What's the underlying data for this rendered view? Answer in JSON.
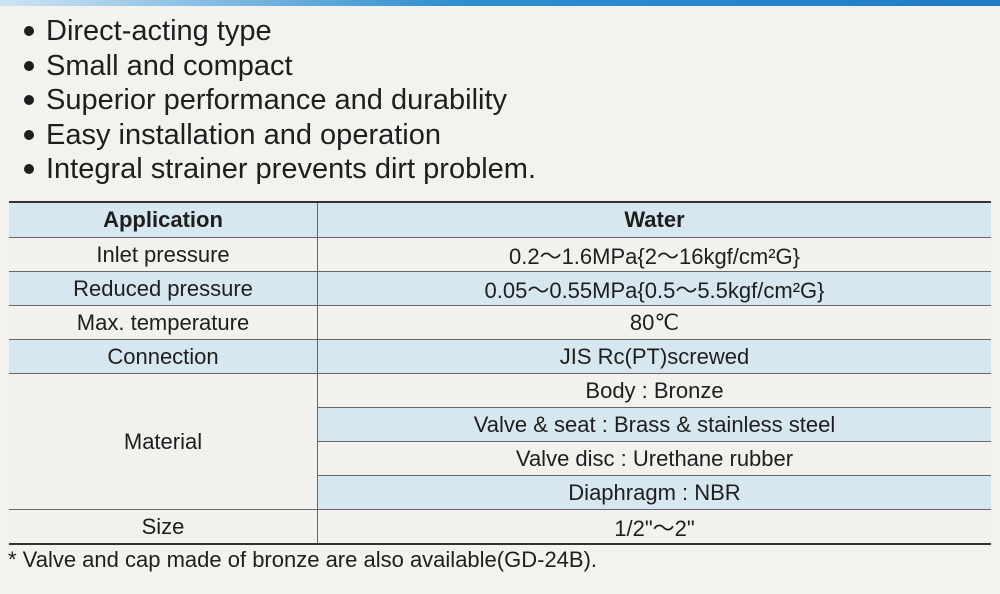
{
  "features": [
    "Direct-acting type",
    "Small and compact",
    "Superior performance and durability",
    "Easy installation and operation",
    "Integral strainer prevents dirt problem."
  ],
  "table": {
    "header": {
      "label": "Application",
      "value": "Water"
    },
    "inlet": {
      "label": "Inlet pressure",
      "value": "0.2〜1.6MPa{2〜16kgf/cm²G}"
    },
    "reduced": {
      "label": "Reduced pressure",
      "value": "0.05〜0.55MPa{0.5〜5.5kgf/cm²G}"
    },
    "maxtemp": {
      "label": "Max. temperature",
      "value": "80℃"
    },
    "connection": {
      "label": "Connection",
      "value": "JIS Rc(PT)screwed"
    },
    "material": {
      "label": "Material",
      "values": [
        "Body : Bronze",
        "Valve & seat : Brass & stainless steel",
        "Valve disc : Urethane rubber",
        "Diaphragm : NBR"
      ]
    },
    "size": {
      "label": "Size",
      "value": "1/2\"〜2\""
    }
  },
  "footnote": "* Valve and cap made of bronze are also available(GD-24B)."
}
